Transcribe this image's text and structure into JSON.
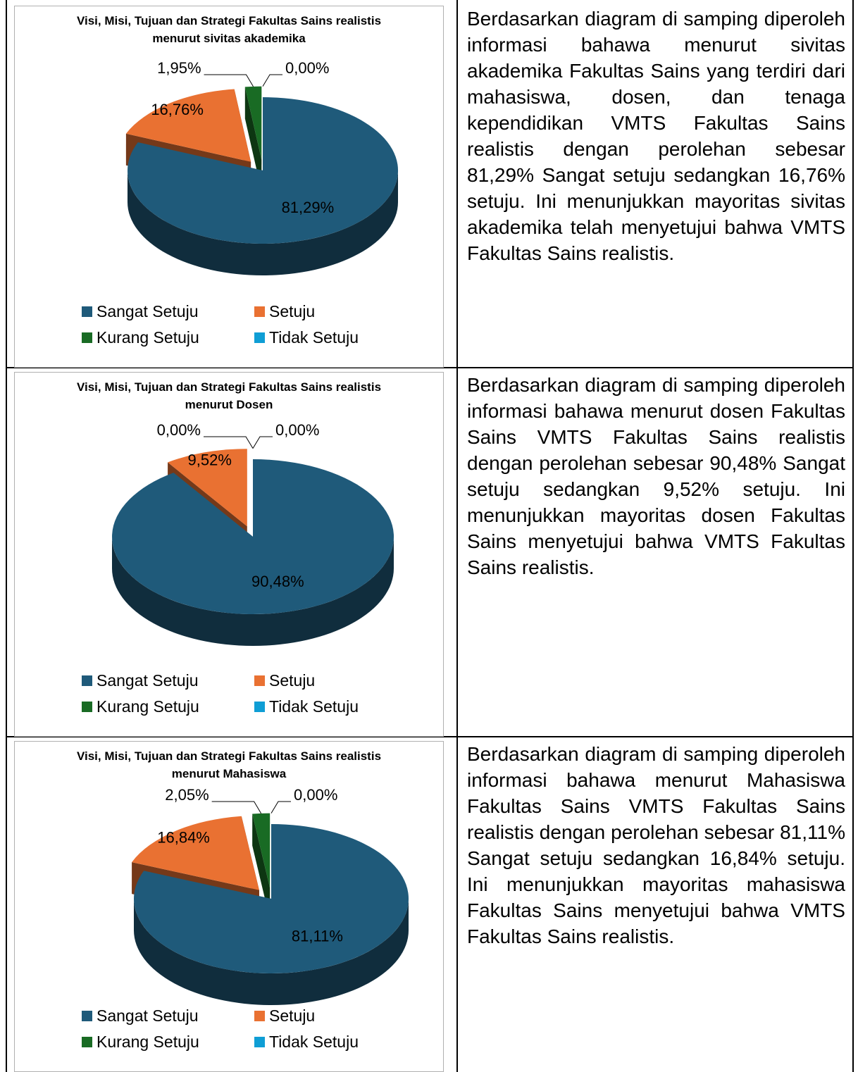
{
  "rows": [
    {
      "chart": {
        "type": "pie",
        "title": "Visi, Misi, Tujuan dan Strategi Fakultas Sains realistis menurut sivitas akademika",
        "categories": [
          "Sangat Setuju",
          "Setuju",
          "Kurang Setuju",
          "Tidak Setuju"
        ],
        "values": [
          81.29,
          16.76,
          1.95,
          0
        ],
        "value_labels": [
          "81,29%",
          "16,76%",
          "1,95%",
          "0,00%"
        ],
        "colors": [
          "#1f5a7a",
          "#e97132",
          "#196b24",
          "#0f9ed5"
        ]
      },
      "text": "Berdasarkan diagram di samping diperoleh informasi bahawa menurut sivitas akademika Fakultas Sains yang terdiri dari mahasiswa, dosen, dan tenaga kependidikan VMTS Fakultas Sains realistis dengan perolehan sebesar 81,29% Sangat setuju sedangkan 16,76% setuju. Ini menunjukkan mayoritas sivitas akademika telah menyetujui bahwa VMTS Fakultas Sains realistis."
    },
    {
      "chart": {
        "type": "pie",
        "title": "Visi, Misi, Tujuan dan Strategi Fakultas Sains realistis menurut Dosen",
        "categories": [
          "Sangat Setuju",
          "Setuju",
          "Kurang Setuju",
          "Tidak Setuju"
        ],
        "values": [
          90.48,
          9.52,
          0,
          0
        ],
        "value_labels": [
          "90,48%",
          "9,52%",
          "0,00%",
          "0,00%"
        ],
        "colors": [
          "#1f5a7a",
          "#e97132",
          "#196b24",
          "#0f9ed5"
        ]
      },
      "text": "Berdasarkan diagram di samping diperoleh informasi bahawa menurut dosen Fakultas Sains VMTS Fakultas Sains realistis dengan perolehan sebesar 90,48% Sangat setuju sedangkan 9,52% setuju. Ini menunjukkan mayoritas dosen Fakultas Sains menyetujui bahwa VMTS Fakultas Sains realistis."
    },
    {
      "chart": {
        "type": "pie",
        "title": "Visi, Misi, Tujuan dan Strategi Fakultas Sains realistis menurut Mahasiswa",
        "categories": [
          "Sangat Setuju",
          "Setuju",
          "Kurang Setuju",
          "Tidak Setuju"
        ],
        "values": [
          81.11,
          16.84,
          2.05,
          0
        ],
        "value_labels": [
          "81,11%",
          "16,84%",
          "2,05%",
          "0,00%"
        ],
        "colors": [
          "#1f5a7a",
          "#e97132",
          "#196b24",
          "#0f9ed5"
        ]
      },
      "text": "Berdasarkan diagram di samping diperoleh informasi bahawa menurut Mahasiswa Fakultas Sains VMTS Fakultas Sains realistis dengan perolehan sebesar 81,11% Sangat setuju sedangkan 16,84% setuju. Ini menunjukkan mayoritas mahasiswa Fakultas Sains menyetujui bahwa VMTS Fakultas Sains realistis."
    }
  ]
}
